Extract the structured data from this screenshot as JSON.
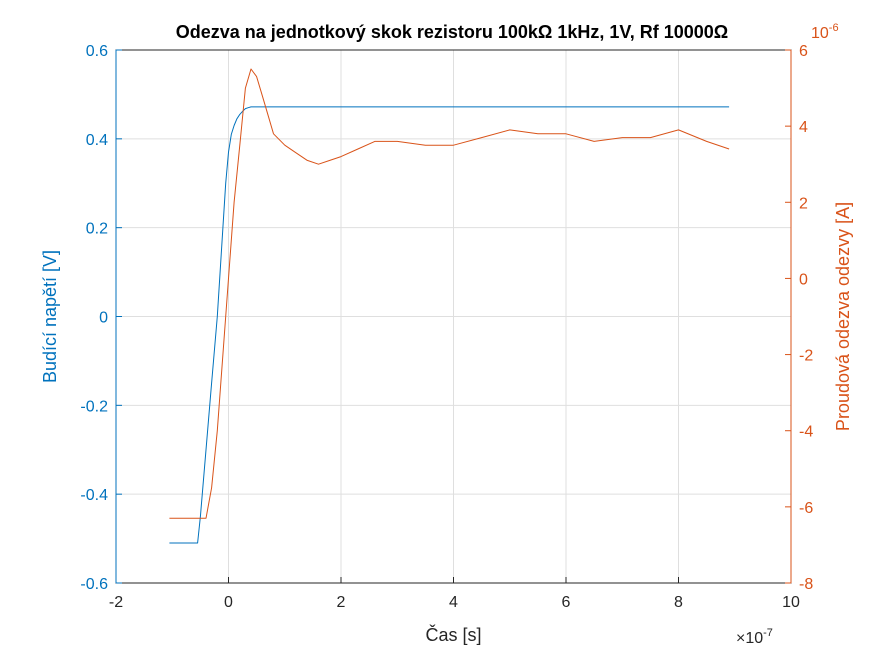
{
  "chart_data": {
    "type": "line",
    "title": "Odezva na jednotkový skok rezistoru 100kΩ 1kHz, 1V, Rf 10000Ω",
    "xlabel": "Čas [s]",
    "x_exponent": "×10",
    "x_exponent_power": "-7",
    "xlim": [
      -2,
      10
    ],
    "xticks": [
      "-2",
      "0",
      "2",
      "4",
      "6",
      "8",
      "10"
    ],
    "ylabel_left": "Budící napětí [V]",
    "ylim_left": [
      -0.6,
      0.6
    ],
    "yticks_left": [
      "-0.6",
      "-0.4",
      "-0.2",
      "0",
      "0.2",
      "0.4",
      "0.6"
    ],
    "ylabel_right": "Proudová odezva odezvy [A]",
    "y_right_exponent": "10",
    "y_right_exponent_power": "-6",
    "ylim_right": [
      -8,
      6
    ],
    "yticks_right": [
      "-8",
      "-6",
      "-4",
      "-2",
      "0",
      "2",
      "4",
      "6"
    ],
    "grid": true,
    "colors": {
      "left": "#0072BD",
      "right": "#D95319",
      "grid": "#DFDFDF"
    },
    "series": [
      {
        "axis": "left",
        "x": [
          -1.05,
          -0.55,
          -0.5,
          -0.4,
          -0.3,
          -0.2,
          -0.1,
          -0.05,
          0.0,
          0.05,
          0.1,
          0.15,
          0.2,
          0.25,
          0.3,
          0.35,
          0.4,
          0.5,
          0.7,
          1.0,
          1.5,
          2.0,
          3.0,
          4.0,
          5.0,
          6.0,
          7.0,
          8.0,
          8.9
        ],
        "y": [
          -0.51,
          -0.51,
          -0.45,
          -0.3,
          -0.15,
          0.0,
          0.2,
          0.3,
          0.37,
          0.41,
          0.43,
          0.445,
          0.455,
          0.462,
          0.468,
          0.47,
          0.472,
          0.472,
          0.472,
          0.472,
          0.472,
          0.472,
          0.472,
          0.472,
          0.472,
          0.472,
          0.472,
          0.472,
          0.472
        ]
      },
      {
        "axis": "right",
        "x": [
          -1.05,
          -0.4,
          -0.3,
          -0.2,
          -0.1,
          0.0,
          0.1,
          0.2,
          0.3,
          0.4,
          0.5,
          0.6,
          0.7,
          0.8,
          1.0,
          1.2,
          1.4,
          1.6,
          1.8,
          2.0,
          2.3,
          2.6,
          3.0,
          3.5,
          4.0,
          4.5,
          5.0,
          5.5,
          6.0,
          6.5,
          7.0,
          7.5,
          8.0,
          8.5,
          8.9
        ],
        "y": [
          -6.3,
          -6.3,
          -5.5,
          -4.0,
          -2.0,
          0.0,
          2.0,
          3.5,
          5.0,
          5.5,
          5.3,
          4.8,
          4.3,
          3.8,
          3.5,
          3.3,
          3.1,
          3.0,
          3.1,
          3.2,
          3.4,
          3.6,
          3.6,
          3.5,
          3.5,
          3.7,
          3.9,
          3.8,
          3.8,
          3.6,
          3.7,
          3.7,
          3.9,
          3.6,
          3.4
        ]
      }
    ]
  }
}
